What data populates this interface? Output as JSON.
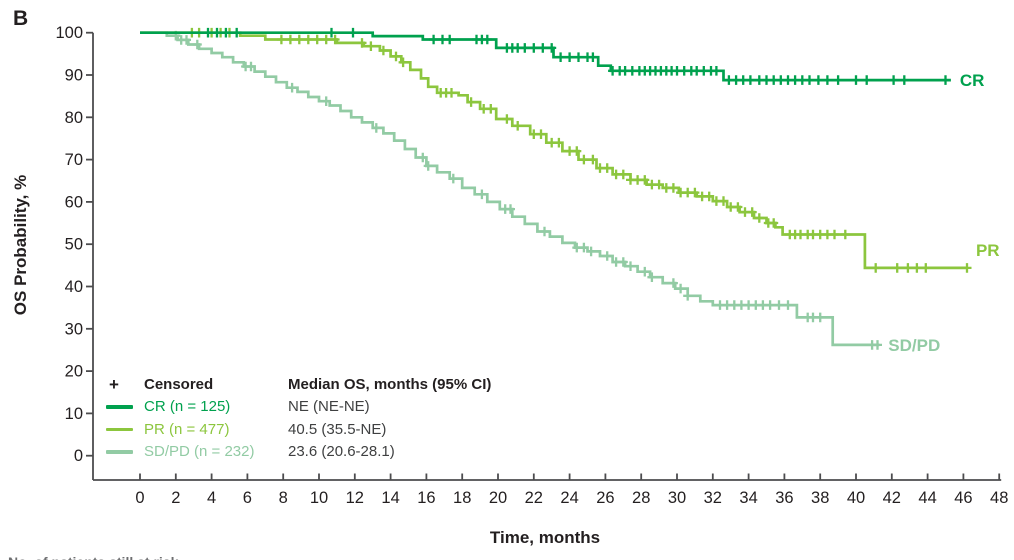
{
  "figure": {
    "panel_label": "B",
    "footnote_clipped": "No. of patients still at risk"
  },
  "colors": {
    "axis": "#4c4c4e",
    "text": "#231f20",
    "legend_value_text": "#3f4041"
  },
  "legend": {
    "censored_symbol": "+",
    "censored_label": "Censored",
    "median_header": "Median OS, months (95% CI)"
  },
  "chart_data": {
    "type": "line",
    "subtype": "kaplan-meier-step",
    "xlabel": "Time, months",
    "ylabel": "OS Probability, %",
    "xlim": [
      0,
      48
    ],
    "ylim": [
      0,
      100
    ],
    "xticks": [
      0,
      2,
      4,
      6,
      8,
      10,
      12,
      14,
      16,
      18,
      20,
      22,
      24,
      26,
      28,
      30,
      32,
      34,
      36,
      38,
      40,
      42,
      44,
      46,
      48
    ],
    "yticks": [
      0,
      10,
      20,
      30,
      40,
      50,
      60,
      70,
      80,
      90,
      100
    ],
    "grid": false,
    "legend_position": "bottom-left-inside",
    "series": [
      {
        "name": "CR",
        "end_label": "CR",
        "legend_label": "CR (n = 125)",
        "n": 125,
        "median_os": "NE (NE-NE)",
        "color": "#00a14e",
        "label_dy": 0,
        "steps": [
          [
            0,
            100
          ],
          [
            13,
            99.2
          ],
          [
            15.8,
            98.4
          ],
          [
            19.9,
            96.4
          ],
          [
            23.1,
            94.2
          ],
          [
            25.6,
            92.2
          ],
          [
            26.3,
            91
          ],
          [
            32.6,
            88.8
          ],
          [
            45.3,
            88.8
          ]
        ],
        "censors": [
          3.8,
          4.3,
          4.8,
          5.4,
          10.7,
          11.9,
          16.4,
          16.9,
          17.3,
          18.8,
          19.1,
          19.4,
          20.5,
          20.8,
          21.1,
          21.5,
          22,
          22.5,
          23,
          23.5,
          24,
          24.5,
          25,
          25.3,
          26.4,
          26.8,
          27.1,
          27.5,
          27.9,
          28.2,
          28.5,
          28.8,
          29.1,
          29.4,
          29.7,
          30,
          30.4,
          30.8,
          31.1,
          31.5,
          31.9,
          32.2,
          32.9,
          33.3,
          33.7,
          34.1,
          34.6,
          35,
          35.4,
          35.8,
          36.2,
          36.6,
          37,
          37.4,
          37.9,
          38.4,
          39,
          40,
          40.6,
          42.1,
          42.7,
          45
        ]
      },
      {
        "name": "PR",
        "end_label": "PR",
        "legend_label": "PR (n = 477)",
        "n": 477,
        "median_os": "40.5 (35.5-NE)",
        "color": "#8cc63e",
        "label_dy": -18,
        "steps": [
          [
            0,
            100
          ],
          [
            5.6,
            99.3
          ],
          [
            7,
            98.4
          ],
          [
            11,
            97.6
          ],
          [
            12.5,
            96.8
          ],
          [
            13.4,
            95.8
          ],
          [
            14,
            94.4
          ],
          [
            14.6,
            93
          ],
          [
            15.1,
            91.2
          ],
          [
            15.7,
            89.2
          ],
          [
            16.1,
            87.2
          ],
          [
            16.6,
            85.8
          ],
          [
            17.8,
            85.2
          ],
          [
            18.3,
            83.6
          ],
          [
            19,
            82
          ],
          [
            19.9,
            79.6
          ],
          [
            20.8,
            78
          ],
          [
            21.8,
            76
          ],
          [
            22.7,
            74
          ],
          [
            23.6,
            72
          ],
          [
            24.5,
            70
          ],
          [
            25.5,
            68
          ],
          [
            26.4,
            66.5
          ],
          [
            27.4,
            65.2
          ],
          [
            28.3,
            64.1
          ],
          [
            29.2,
            63.3
          ],
          [
            30.1,
            62.2
          ],
          [
            31.1,
            61.3
          ],
          [
            32,
            60.2
          ],
          [
            32.8,
            58.8
          ],
          [
            33.5,
            57.6
          ],
          [
            34.3,
            56.2
          ],
          [
            35,
            55
          ],
          [
            35.5,
            54
          ],
          [
            35.9,
            52.3
          ],
          [
            40.5,
            44.4
          ],
          [
            46.2,
            44.4
          ]
        ],
        "censors": [
          2.9,
          3.3,
          4,
          4.5,
          5,
          7.9,
          8.4,
          8.9,
          9.4,
          9.9,
          10.4,
          10.9,
          12.4,
          12.9,
          13.6,
          14.3,
          14.7,
          16.8,
          17.1,
          17.4,
          18.5,
          19.2,
          19.6,
          20.5,
          21.1,
          22,
          22.4,
          23,
          23.4,
          24,
          24.4,
          24.8,
          25.3,
          25.7,
          26.1,
          26.6,
          27,
          27.4,
          27.8,
          28.2,
          28.6,
          29,
          29.4,
          29.8,
          30.2,
          30.6,
          31,
          31.4,
          31.8,
          32.2,
          32.6,
          33,
          33.4,
          33.8,
          34.2,
          34.6,
          35.1,
          35.4,
          36.3,
          36.6,
          36.9,
          37.3,
          37.6,
          38,
          38.4,
          38.8,
          39.4,
          41.1,
          42.3,
          42.9,
          43.4,
          43.9,
          46.2
        ]
      },
      {
        "name": "SD/PD",
        "end_label": "SD/PD",
        "legend_label": "SD/PD (n = 232)",
        "n": 232,
        "median_os": "23.6 (20.6-28.1)",
        "color": "#92cba4",
        "label_dy": 0,
        "steps": [
          [
            0,
            100
          ],
          [
            1.5,
            99.3
          ],
          [
            2.1,
            98.3
          ],
          [
            2.7,
            97.2
          ],
          [
            3.3,
            96.2
          ],
          [
            4,
            95.2
          ],
          [
            4.6,
            94.2
          ],
          [
            5.2,
            93
          ],
          [
            5.8,
            92
          ],
          [
            6.4,
            90.8
          ],
          [
            7,
            89.6
          ],
          [
            7.6,
            88.3
          ],
          [
            8.2,
            87
          ],
          [
            8.8,
            86
          ],
          [
            9.4,
            84.8
          ],
          [
            10,
            83.8
          ],
          [
            10.6,
            82.8
          ],
          [
            11.2,
            81.5
          ],
          [
            11.8,
            80
          ],
          [
            12.4,
            78.8
          ],
          [
            13,
            77.5
          ],
          [
            13.6,
            76.2
          ],
          [
            14.2,
            74.5
          ],
          [
            14.8,
            72.5
          ],
          [
            15.4,
            70.5
          ],
          [
            16,
            68.5
          ],
          [
            16.6,
            67
          ],
          [
            17.3,
            65.5
          ],
          [
            18,
            63.3
          ],
          [
            18.7,
            61.8
          ],
          [
            19.4,
            60
          ],
          [
            20.1,
            58.3
          ],
          [
            20.8,
            56.5
          ],
          [
            21.5,
            54.8
          ],
          [
            22.2,
            53
          ],
          [
            22.9,
            51.8
          ],
          [
            23.6,
            50.3
          ],
          [
            24.3,
            49.2
          ],
          [
            25,
            48.3
          ],
          [
            25.7,
            47.2
          ],
          [
            26.4,
            45.8
          ],
          [
            27.1,
            44.8
          ],
          [
            27.8,
            43.5
          ],
          [
            28.5,
            42.2
          ],
          [
            29.2,
            40.8
          ],
          [
            29.9,
            39.5
          ],
          [
            30.6,
            37.8
          ],
          [
            31.3,
            36.5
          ],
          [
            32,
            35.6
          ],
          [
            36.7,
            32.7
          ],
          [
            38.7,
            26.2
          ],
          [
            41.3,
            26.2
          ]
        ],
        "censors": [
          2,
          2.3,
          2.6,
          3.2,
          5.9,
          6.2,
          8.5,
          10.4,
          13.2,
          15.8,
          16.1,
          17.5,
          19.1,
          20.4,
          20.7,
          22.6,
          24.4,
          24.8,
          25.2,
          26.1,
          26.6,
          27,
          27.4,
          28.2,
          28.6,
          29.8,
          30.2,
          30.6,
          32.4,
          32.8,
          33.2,
          33.6,
          34,
          34.4,
          34.8,
          35.2,
          35.7,
          36.2,
          37.3,
          37.6,
          38,
          40.9,
          41.2
        ]
      }
    ]
  }
}
